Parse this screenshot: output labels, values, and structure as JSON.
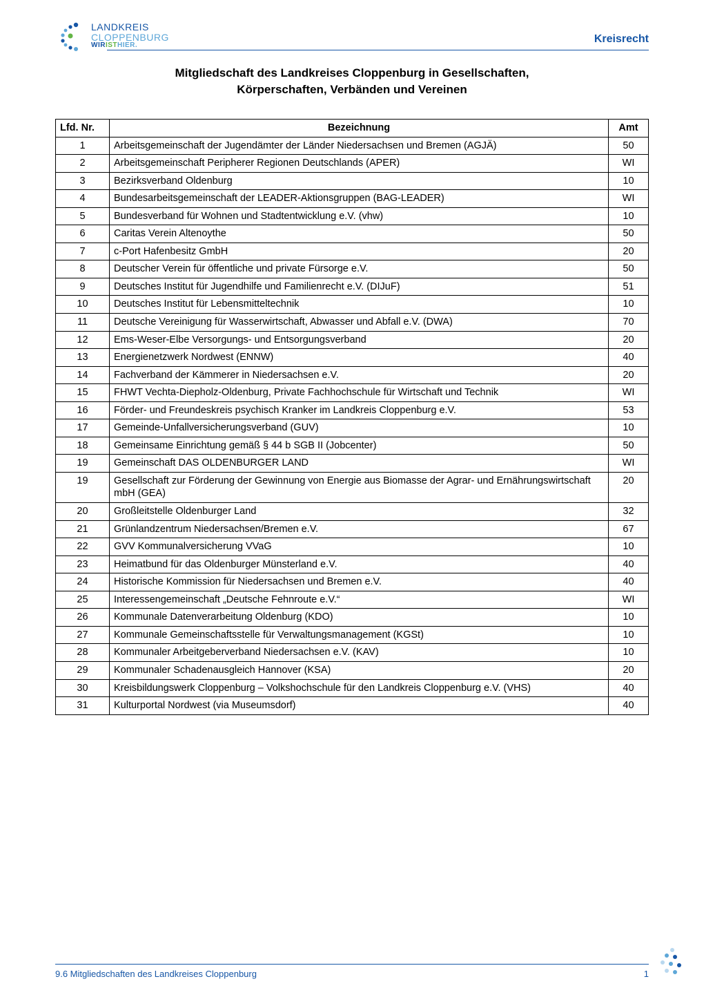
{
  "brand": {
    "line1": "LANDKREIS",
    "line2": "CLOPPENBURG",
    "line3_wir": "WIR",
    "line3_ist": "IST",
    "line3_hier": "HIER.",
    "kreisrecht": "Kreisrecht",
    "logo_colors": {
      "blue_dark": "#1656a6",
      "blue_light": "#5ea7d8",
      "green": "#63b545"
    }
  },
  "title": "Mitgliedschaft des Landkreises Cloppenburg in Gesellschaften,",
  "subtitle": "Körperschaften, Verbänden und Vereinen",
  "table": {
    "head": {
      "nr": "Lfd. Nr.",
      "bez": "Bezeichnung",
      "amt": "Amt"
    },
    "rows": [
      {
        "nr": "1",
        "bez": "Arbeitsgemeinschaft der Jugendämter der Länder Niedersachsen und Bremen (AGJÄ)",
        "amt": "50"
      },
      {
        "nr": "2",
        "bez": "Arbeitsgemeinschaft Peripherer Regionen Deutschlands (APER)",
        "amt": "WI"
      },
      {
        "nr": "3",
        "bez": "Bezirksverband Oldenburg",
        "amt": "10"
      },
      {
        "nr": "4",
        "bez": "Bundesarbeitsgemeinschaft der LEADER-Aktionsgruppen (BAG-LEADER)",
        "amt": "WI"
      },
      {
        "nr": "5",
        "bez": "Bundesverband für Wohnen und Stadtentwicklung e.V. (vhw)",
        "amt": "10"
      },
      {
        "nr": "6",
        "bez": "Caritas Verein Altenoythe",
        "amt": "50"
      },
      {
        "nr": "7",
        "bez": "c-Port Hafenbesitz GmbH",
        "amt": "20"
      },
      {
        "nr": "8",
        "bez": "Deutscher Verein für öffentliche und private Fürsorge e.V.",
        "amt": "50"
      },
      {
        "nr": "9",
        "bez": "Deutsches Institut für Jugendhilfe und Familienrecht e.V. (DIJuF)",
        "amt": "51"
      },
      {
        "nr": "10",
        "bez": "Deutsches Institut für Lebensmitteltechnik",
        "amt": "10"
      },
      {
        "nr": "11",
        "bez": "Deutsche Vereinigung für Wasserwirtschaft, Abwasser und Abfall e.V. (DWA)",
        "amt": "70"
      },
      {
        "nr": "12",
        "bez": "Ems-Weser-Elbe Versorgungs- und Entsorgungsverband",
        "amt": "20"
      },
      {
        "nr": "13",
        "bez": "Energienetzwerk Nordwest (ENNW)",
        "amt": "40"
      },
      {
        "nr": "14",
        "bez": "Fachverband der Kämmerer in Niedersachsen e.V.",
        "amt": "20"
      },
      {
        "nr": "15",
        "bez": "FHWT Vechta-Diepholz-Oldenburg, Private Fachhochschule für Wirtschaft und Technik",
        "amt": "WI"
      },
      {
        "nr": "16",
        "bez": "Förder- und Freundeskreis psychisch Kranker im Landkreis Cloppenburg e.V.",
        "amt": "53"
      },
      {
        "nr": "17",
        "bez": "Gemeinde-Unfallversicherungsverband (GUV)",
        "amt": "10"
      },
      {
        "nr": "18",
        "bez": "Gemeinsame Einrichtung gemäß § 44 b SGB II (Jobcenter)",
        "amt": "50"
      },
      {
        "nr": "19",
        "bez": "Gemeinschaft DAS OLDENBURGER LAND",
        "amt": "WI"
      },
      {
        "nr": "19",
        "bez": "Gesellschaft zur Förderung der Gewinnung von Energie aus Biomasse der Agrar- und Ernährungswirtschaft mbH (GEA)",
        "amt": "20"
      },
      {
        "nr": "20",
        "bez": "Großleitstelle Oldenburger Land",
        "amt": "32"
      },
      {
        "nr": "21",
        "bez": "Grünlandzentrum Niedersachsen/Bremen e.V.",
        "amt": "67"
      },
      {
        "nr": "22",
        "bez": "GVV Kommunalversicherung VVaG",
        "amt": "10"
      },
      {
        "nr": "23",
        "bez": "Heimatbund für das Oldenburger Münsterland e.V.",
        "amt": "40"
      },
      {
        "nr": "24",
        "bez": "Historische Kommission für Niedersachsen und Bremen e.V.",
        "amt": "40"
      },
      {
        "nr": "25",
        "bez": "Interessengemeinschaft „Deutsche Fehnroute e.V.“",
        "amt": "WI"
      },
      {
        "nr": "26",
        "bez": "Kommunale Datenverarbeitung Oldenburg (KDO)",
        "amt": "10"
      },
      {
        "nr": "27",
        "bez": "Kommunale Gemeinschaftsstelle für Verwaltungsmanagement (KGSt)",
        "amt": "10"
      },
      {
        "nr": "28",
        "bez": "Kommunaler Arbeitgeberverband Niedersachsen e.V. (KAV)",
        "amt": "10"
      },
      {
        "nr": "29",
        "bez": "Kommunaler Schadenausgleich Hannover (KSA)",
        "amt": "20"
      },
      {
        "nr": "30",
        "bez": "Kreisbildungswerk Cloppenburg – Volkshochschule für den Landkreis Cloppenburg  e.V. (VHS)",
        "amt": "40"
      },
      {
        "nr": "31",
        "bez": "Kulturportal Nordwest (via Museumsdorf)",
        "amt": "40"
      }
    ]
  },
  "footer": {
    "text": "9.6 Mitgliedschaften des Landkreises Cloppenburg",
    "page": "1"
  },
  "colors": {
    "text": "#000000",
    "accent": "#1656a6",
    "background": "#ffffff"
  }
}
